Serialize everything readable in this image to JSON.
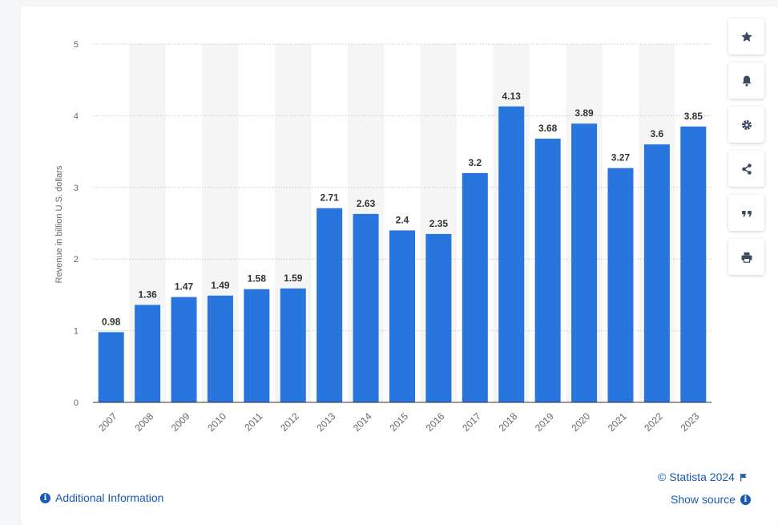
{
  "chart_data": {
    "type": "bar",
    "title": "",
    "xlabel": "",
    "ylabel": "Revenue in billion U.S. dollars",
    "ylim": [
      0,
      5
    ],
    "yticks": [
      0,
      1,
      2,
      3,
      4,
      5
    ],
    "grid": true,
    "categories": [
      "2007",
      "2008",
      "2009",
      "2010",
      "2011",
      "2012",
      "2013",
      "2014",
      "2015",
      "2016",
      "2017",
      "2018",
      "2019",
      "2020",
      "2021",
      "2022",
      "2023"
    ],
    "values": [
      0.98,
      1.36,
      1.47,
      1.49,
      1.58,
      1.59,
      2.71,
      2.63,
      2.4,
      2.35,
      3.2,
      4.13,
      3.68,
      3.89,
      3.27,
      3.6,
      3.85
    ],
    "value_labels": [
      "0.98",
      "1.36",
      "1.47",
      "1.49",
      "1.58",
      "1.59",
      "2.71",
      "2.63",
      "2.4",
      "2.35",
      "3.2",
      "4.13",
      "3.68",
      "3.89",
      "3.27",
      "3.6",
      "3.85"
    ],
    "bar_color": "#2876dd",
    "stripe_color": "#f5f5f5"
  },
  "toolbar": {
    "items": [
      {
        "name": "favorite-button",
        "icon": "star-icon"
      },
      {
        "name": "notification-button",
        "icon": "bell-icon"
      },
      {
        "name": "settings-button",
        "icon": "gear-icon"
      },
      {
        "name": "share-button",
        "icon": "share-icon"
      },
      {
        "name": "cite-button",
        "icon": "quote-icon"
      },
      {
        "name": "print-button",
        "icon": "print-icon"
      }
    ]
  },
  "footer": {
    "copyright": "© Statista 2024",
    "show_source": "Show source",
    "additional_info": "Additional Information",
    "link_color": "#1a5ab4"
  }
}
